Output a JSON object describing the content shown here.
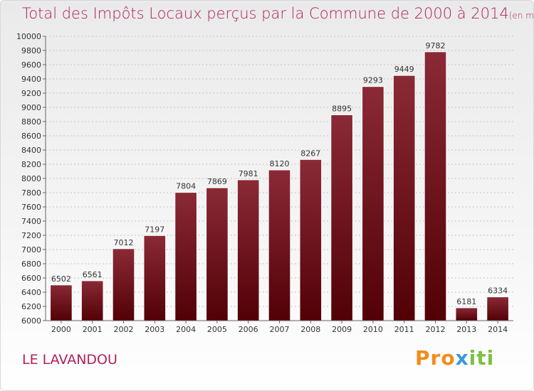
{
  "title": "Total des Impôts Locaux perçus par la Commune de 2000 à 2014",
  "title_unit": "(en milliers d'€)",
  "commune": "LE LAVANDOU",
  "logo": {
    "p1": "Pro",
    "p2": "x",
    "p3": "iti"
  },
  "colors": {
    "title": "#b0205a",
    "bar_top": "#8a2a36",
    "bar_bottom": "#520006"
  },
  "chart_data": {
    "type": "bar",
    "title": "Total des Impôts Locaux perçus par la Commune de 2000 à 2014",
    "xlabel": "",
    "ylabel": "",
    "categories": [
      "2000",
      "2001",
      "2002",
      "2003",
      "2004",
      "2005",
      "2006",
      "2007",
      "2008",
      "2009",
      "2010",
      "2011",
      "2012",
      "2013",
      "2014"
    ],
    "values": [
      6502,
      6561,
      7012,
      7197,
      7804,
      7869,
      7981,
      8120,
      8267,
      8895,
      9293,
      9449,
      9782,
      6181,
      6334
    ],
    "ylim": [
      6000,
      10000
    ],
    "yticks": [
      6000,
      6200,
      6400,
      6600,
      6800,
      7000,
      7200,
      7400,
      7600,
      7800,
      8000,
      8200,
      8400,
      8600,
      8800,
      9000,
      9200,
      9400,
      9600,
      9800,
      10000
    ],
    "grid": true
  }
}
